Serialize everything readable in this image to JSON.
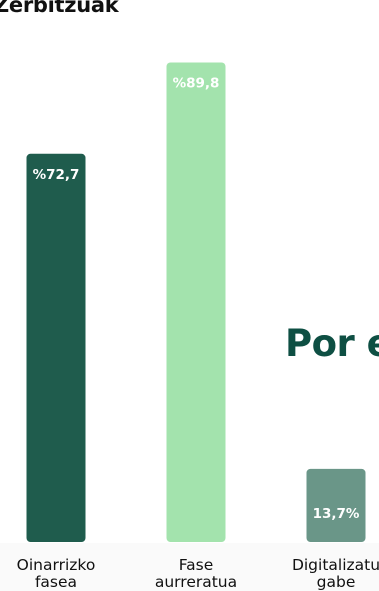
{
  "header": {
    "title": "Zerbitzuak"
  },
  "side_heading": {
    "text": "Por e"
  },
  "chart_data": {
    "type": "bar",
    "title": "",
    "xlabel": "",
    "ylabel": "",
    "ylim": [
      0,
      100
    ],
    "categories": [
      [
        "Oinarrizko",
        "fasea"
      ],
      [
        "Fase",
        "aurreratua"
      ],
      [
        "Digitalizatu",
        "gabe"
      ]
    ],
    "values": [
      72.7,
      89.8,
      13.7
    ],
    "value_labels": [
      "%72,7",
      "%89,8",
      "13,7%"
    ],
    "colors": [
      "#1f5c4d",
      "#a3e3ad",
      "#6a9688"
    ],
    "label_position": [
      "top",
      "top",
      "bottom"
    ],
    "grid": false,
    "legend": "none"
  }
}
